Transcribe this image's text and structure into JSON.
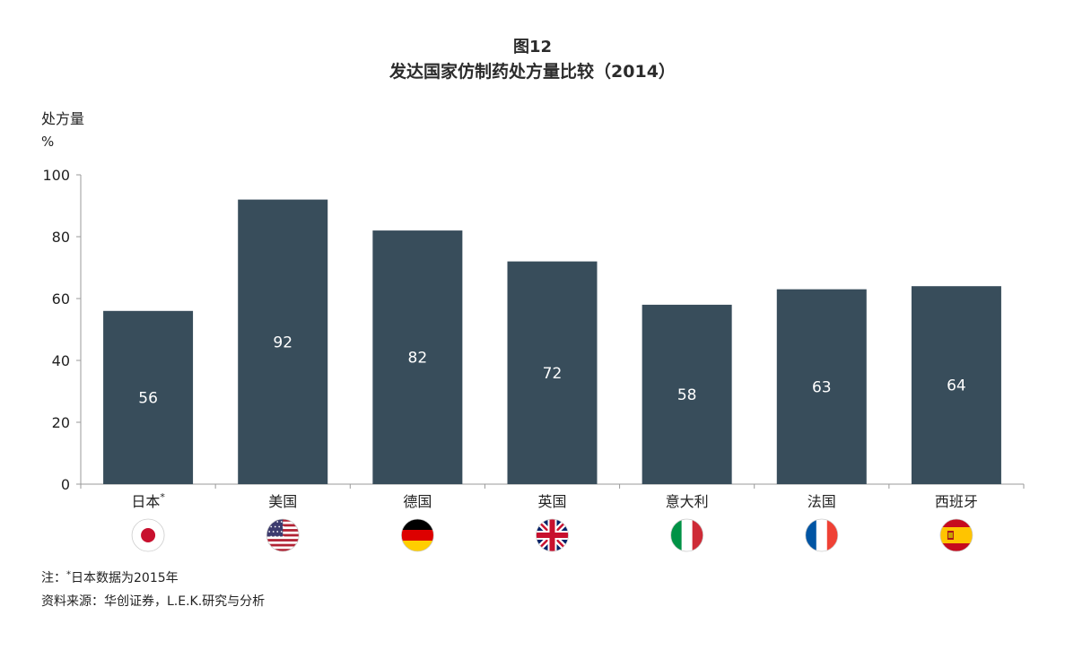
{
  "header": {
    "figure_number": "图12",
    "title": "发达国家仿制药处方量比较（2014）"
  },
  "chart_data": {
    "type": "bar",
    "title": "发达国家仿制药处方量比较（2014）",
    "ylabel": "处方量",
    "yunit": "%",
    "ylim": [
      0,
      100
    ],
    "yticks": [
      0,
      20,
      40,
      60,
      80,
      100
    ],
    "grid": false,
    "categories": [
      "日本",
      "美国",
      "德国",
      "英国",
      "意大利",
      "法国",
      "西班牙"
    ],
    "category_marks": [
      "*",
      "",
      "",
      "",
      "",
      "",
      ""
    ],
    "flags": [
      "japan-flag-icon",
      "usa-flag-icon",
      "germany-flag-icon",
      "uk-flag-icon",
      "italy-flag-icon",
      "france-flag-icon",
      "spain-flag-icon"
    ],
    "values": [
      56,
      92,
      82,
      72,
      58,
      63,
      64
    ],
    "bar_color": "#384d5b",
    "label_color": "#ffffff"
  },
  "footnotes": {
    "note_prefix": "注：",
    "note_mark": "*",
    "note_text": "日本数据为2015年",
    "source": "资料来源：华创证券，L.E.K.研究与分析"
  }
}
